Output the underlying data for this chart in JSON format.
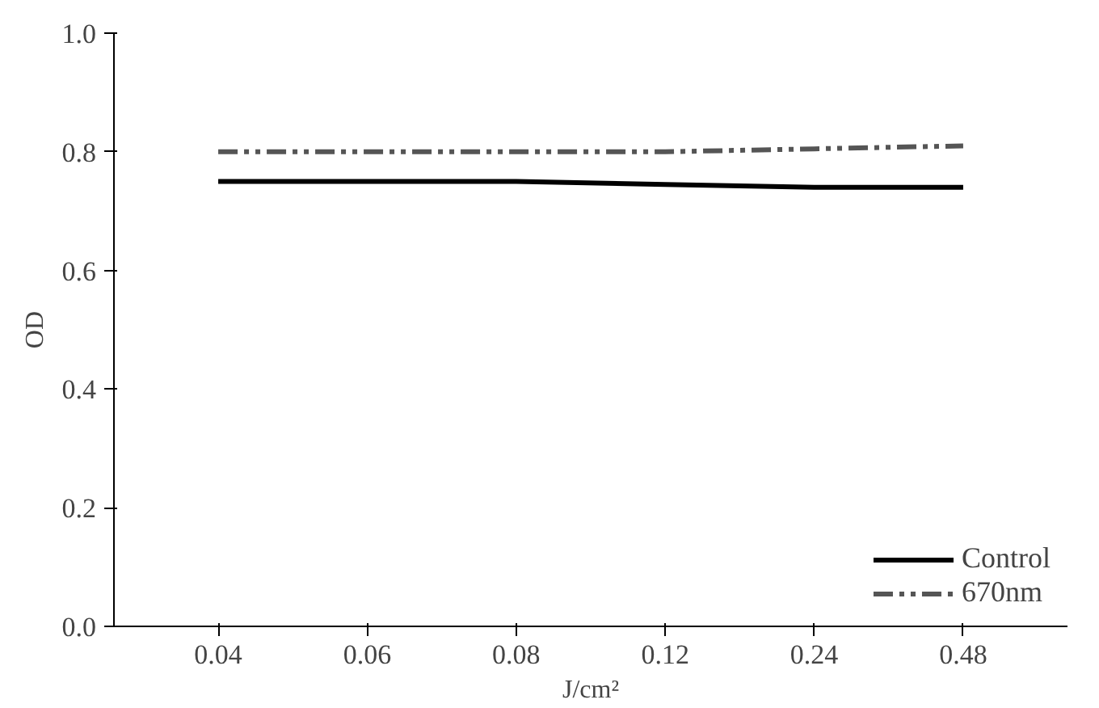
{
  "chart_data": {
    "type": "line",
    "xlabel": "J/cm²",
    "ylabel": "OD",
    "categories": [
      "0.04",
      "0.06",
      "0.08",
      "0.12",
      "0.24",
      "0.48"
    ],
    "series": [
      {
        "name": "Control",
        "color": "#000000",
        "line_style": "solid",
        "values": [
          0.75,
          0.75,
          0.75,
          0.745,
          0.74,
          0.74
        ]
      },
      {
        "name": "670nm",
        "color": "#555555",
        "line_style": "dashdot",
        "values": [
          0.8,
          0.8,
          0.8,
          0.8,
          0.805,
          0.81
        ]
      }
    ],
    "ylim": [
      0,
      1.0
    ],
    "yticks": [
      {
        "value": 0,
        "label": "0.0"
      },
      0.2,
      0.4,
      0.6,
      0.8,
      {
        "value": 1,
        "label": "1.0"
      }
    ],
    "grid": false,
    "legend": "bottom right",
    "marker": "none"
  }
}
